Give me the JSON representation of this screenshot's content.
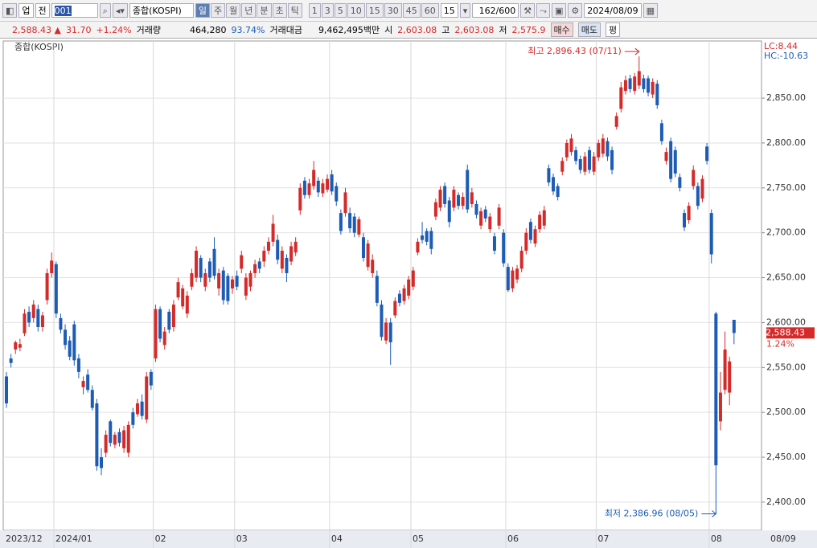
{
  "toolbar": {
    "market": "업",
    "scope": "전",
    "code": "001",
    "name": "종합(KOSPI)",
    "periods": [
      "일",
      "주",
      "월",
      "년",
      "분",
      "초",
      "틱"
    ],
    "intervals": [
      "1",
      "3",
      "5",
      "10",
      "15",
      "30",
      "45",
      "60"
    ],
    "unit": "15",
    "count": "162/600",
    "date": "2024/08/09"
  },
  "quote": {
    "price": "2,588.43",
    "change": "31.70",
    "change_pct": "+1.24%",
    "volume_label": "거래량",
    "volume": "464,280",
    "volume_ratio": "93.74%",
    "amount_label": "거래대금",
    "amount": "9,462,495백만",
    "open_label": "시",
    "open": "2,603.08",
    "high_label": "고",
    "high": "2,603.08",
    "low_label": "저",
    "low": "2,575.9",
    "buy": "매수",
    "sell": "매도",
    "avg": "평"
  },
  "chart_data": {
    "type": "candlestick",
    "title": "종합(KOSPI)",
    "categories": [
      "2023/12",
      null,
      null,
      null,
      null,
      null,
      null,
      null,
      null,
      null,
      null,
      "2024/01",
      null,
      null,
      null,
      null,
      null,
      null,
      null,
      null,
      null,
      null,
      null,
      null,
      null,
      null,
      null,
      null,
      null,
      null,
      null,
      null,
      null,
      "02",
      null,
      null,
      null,
      null,
      null,
      null,
      null,
      null,
      null,
      null,
      null,
      null,
      null,
      null,
      null,
      null,
      null,
      "03",
      null,
      null,
      null,
      null,
      null,
      null,
      null,
      null,
      null,
      null,
      null,
      null,
      null,
      null,
      null,
      null,
      null,
      null,
      null,
      null,
      "04",
      null,
      null,
      null,
      null,
      null,
      null,
      null,
      null,
      null,
      null,
      null,
      null,
      null,
      null,
      null,
      null,
      null,
      "05",
      null,
      null,
      null,
      null,
      null,
      null,
      null,
      null,
      null,
      null,
      null,
      null,
      null,
      null,
      null,
      null,
      null,
      null,
      null,
      null,
      "06",
      null,
      null,
      null,
      null,
      null,
      null,
      null,
      null,
      null,
      null,
      null,
      null,
      null,
      null,
      null,
      null,
      null,
      null,
      null,
      "07",
      null,
      null,
      null,
      null,
      null,
      null,
      null,
      null,
      null,
      null,
      null,
      null,
      null,
      null,
      null,
      null,
      null,
      null,
      null,
      null,
      null,
      null,
      null,
      null,
      "08",
      null,
      null,
      null,
      null,
      null
    ],
    "end_label": "08/09",
    "ohlc": [
      [
        2540,
        2545,
        2505,
        2510
      ],
      [
        2560,
        2565,
        2550,
        2555
      ],
      [
        2570,
        2580,
        2565,
        2578
      ],
      [
        2572,
        2582,
        2568,
        2576
      ],
      [
        2588,
        2615,
        2585,
        2610
      ],
      [
        2612,
        2618,
        2595,
        2600
      ],
      [
        2605,
        2625,
        2600,
        2620
      ],
      [
        2615,
        2620,
        2590,
        2595
      ],
      [
        2595,
        2612,
        2590,
        2608
      ],
      [
        2625,
        2660,
        2620,
        2655
      ],
      [
        2655,
        2678,
        2650,
        2669
      ],
      [
        2665,
        2668,
        2605,
        2610
      ],
      [
        2605,
        2610,
        2588,
        2592
      ],
      [
        2592,
        2598,
        2570,
        2575
      ],
      [
        2580,
        2585,
        2558,
        2562
      ],
      [
        2598,
        2602,
        2552,
        2558
      ],
      [
        2560,
        2565,
        2538,
        2545
      ],
      [
        2528,
        2540,
        2520,
        2535
      ],
      [
        2542,
        2548,
        2522,
        2525
      ],
      [
        2525,
        2530,
        2502,
        2505
      ],
      [
        2510,
        2515,
        2435,
        2440
      ],
      [
        2450,
        2460,
        2430,
        2438
      ],
      [
        2455,
        2480,
        2450,
        2475
      ],
      [
        2490,
        2492,
        2462,
        2466
      ],
      [
        2464,
        2478,
        2460,
        2475
      ],
      [
        2478,
        2482,
        2462,
        2466
      ],
      [
        2460,
        2485,
        2455,
        2480
      ],
      [
        2455,
        2490,
        2450,
        2486
      ],
      [
        2500,
        2505,
        2482,
        2486
      ],
      [
        2498,
        2515,
        2495,
        2510
      ],
      [
        2512,
        2520,
        2492,
        2496
      ],
      [
        2492,
        2545,
        2488,
        2540
      ],
      [
        2545,
        2548,
        2525,
        2530
      ],
      [
        2560,
        2620,
        2556,
        2615
      ],
      [
        2615,
        2618,
        2578,
        2582
      ],
      [
        2575,
        2595,
        2570,
        2590
      ],
      [
        2612,
        2615,
        2588,
        2592
      ],
      [
        2595,
        2625,
        2590,
        2620
      ],
      [
        2628,
        2650,
        2625,
        2645
      ],
      [
        2618,
        2642,
        2615,
        2638
      ],
      [
        2610,
        2635,
        2605,
        2630
      ],
      [
        2640,
        2660,
        2636,
        2655
      ],
      [
        2650,
        2685,
        2645,
        2680
      ],
      [
        2672,
        2675,
        2645,
        2650
      ],
      [
        2640,
        2660,
        2635,
        2655
      ],
      [
        2668,
        2672,
        2645,
        2650
      ],
      [
        2682,
        2695,
        2648,
        2652
      ],
      [
        2638,
        2660,
        2630,
        2655
      ],
      [
        2658,
        2662,
        2620,
        2625
      ],
      [
        2652,
        2655,
        2620,
        2624
      ],
      [
        2638,
        2652,
        2632,
        2648
      ],
      [
        2652,
        2658,
        2636,
        2640
      ],
      [
        2660,
        2680,
        2655,
        2675
      ],
      [
        2630,
        2655,
        2625,
        2650
      ],
      [
        2640,
        2658,
        2635,
        2655
      ],
      [
        2655,
        2670,
        2650,
        2665
      ],
      [
        2668,
        2672,
        2655,
        2660
      ],
      [
        2668,
        2685,
        2662,
        2680
      ],
      [
        2680,
        2695,
        2676,
        2690
      ],
      [
        2690,
        2720,
        2685,
        2710
      ],
      [
        2692,
        2698,
        2665,
        2670
      ],
      [
        2660,
        2685,
        2655,
        2680
      ],
      [
        2672,
        2676,
        2645,
        2655
      ],
      [
        2668,
        2690,
        2664,
        2685
      ],
      [
        2678,
        2695,
        2674,
        2690
      ],
      [
        2725,
        2755,
        2720,
        2750
      ],
      [
        2758,
        2762,
        2738,
        2742
      ],
      [
        2742,
        2760,
        2738,
        2755
      ],
      [
        2752,
        2780,
        2748,
        2770
      ],
      [
        2758,
        2762,
        2740,
        2745
      ],
      [
        2744,
        2760,
        2740,
        2755
      ],
      [
        2748,
        2765,
        2745,
        2760
      ],
      [
        2765,
        2770,
        2742,
        2746
      ],
      [
        2752,
        2756,
        2730,
        2735
      ],
      [
        2722,
        2726,
        2698,
        2702
      ],
      [
        2722,
        2750,
        2718,
        2745
      ],
      [
        2722,
        2728,
        2700,
        2705
      ],
      [
        2718,
        2722,
        2695,
        2700
      ],
      [
        2698,
        2718,
        2695,
        2715
      ],
      [
        2695,
        2700,
        2668,
        2672
      ],
      [
        2662,
        2692,
        2658,
        2688
      ],
      [
        2655,
        2676,
        2650,
        2670
      ],
      [
        2652,
        2658,
        2618,
        2622
      ],
      [
        2620,
        2625,
        2580,
        2584
      ],
      [
        2580,
        2605,
        2576,
        2600
      ],
      [
        2600,
        2605,
        2553,
        2578
      ],
      [
        2608,
        2628,
        2605,
        2624
      ],
      [
        2632,
        2636,
        2618,
        2622
      ],
      [
        2624,
        2642,
        2620,
        2638
      ],
      [
        2630,
        2652,
        2626,
        2648
      ],
      [
        2640,
        2662,
        2636,
        2658
      ],
      [
        2678,
        2694,
        2675,
        2690
      ],
      [
        2697,
        2712,
        2688,
        2692
      ],
      [
        2702,
        2705,
        2686,
        2690
      ],
      [
        2702,
        2706,
        2676,
        2682
      ],
      [
        2718,
        2738,
        2714,
        2734
      ],
      [
        2728,
        2752,
        2724,
        2748
      ],
      [
        2752,
        2756,
        2728,
        2732
      ],
      [
        2736,
        2740,
        2706,
        2712
      ],
      [
        2728,
        2752,
        2724,
        2748
      ],
      [
        2742,
        2745,
        2726,
        2730
      ],
      [
        2730,
        2745,
        2726,
        2740
      ],
      [
        2770,
        2776,
        2722,
        2726
      ],
      [
        2732,
        2750,
        2728,
        2745
      ],
      [
        2732,
        2736,
        2716,
        2720
      ],
      [
        2708,
        2728,
        2704,
        2724
      ],
      [
        2726,
        2730,
        2712,
        2716
      ],
      [
        2704,
        2722,
        2700,
        2718
      ],
      [
        2696,
        2700,
        2676,
        2680
      ],
      [
        2708,
        2732,
        2704,
        2728
      ],
      [
        2700,
        2704,
        2662,
        2666
      ],
      [
        2662,
        2666,
        2634,
        2636
      ],
      [
        2638,
        2662,
        2634,
        2658
      ],
      [
        2648,
        2664,
        2644,
        2660
      ],
      [
        2660,
        2685,
        2656,
        2680
      ],
      [
        2680,
        2705,
        2676,
        2700
      ],
      [
        2712,
        2716,
        2688,
        2692
      ],
      [
        2688,
        2708,
        2684,
        2704
      ],
      [
        2704,
        2724,
        2700,
        2720
      ],
      [
        2708,
        2730,
        2704,
        2725
      ],
      [
        2772,
        2776,
        2752,
        2756
      ],
      [
        2762,
        2766,
        2742,
        2746
      ],
      [
        2752,
        2755,
        2736,
        2740
      ],
      [
        2768,
        2784,
        2764,
        2780
      ],
      [
        2784,
        2804,
        2780,
        2800
      ],
      [
        2790,
        2810,
        2786,
        2805
      ],
      [
        2792,
        2796,
        2776,
        2780
      ],
      [
        2782,
        2786,
        2766,
        2770
      ],
      [
        2768,
        2790,
        2764,
        2785
      ],
      [
        2792,
        2796,
        2766,
        2770
      ],
      [
        2768,
        2790,
        2764,
        2785
      ],
      [
        2784,
        2804,
        2780,
        2800
      ],
      [
        2788,
        2810,
        2784,
        2805
      ],
      [
        2802,
        2806,
        2780,
        2785
      ],
      [
        2792,
        2796,
        2765,
        2770
      ],
      [
        2818,
        2834,
        2815,
        2830
      ],
      [
        2838,
        2868,
        2834,
        2862
      ],
      [
        2858,
        2875,
        2854,
        2870
      ],
      [
        2872,
        2876,
        2856,
        2860
      ],
      [
        2858,
        2878,
        2854,
        2874
      ],
      [
        2864,
        2896.43,
        2860,
        2880
      ],
      [
        2872,
        2876,
        2856,
        2860
      ],
      [
        2872,
        2875,
        2852,
        2856
      ],
      [
        2854,
        2872,
        2850,
        2868
      ],
      [
        2866,
        2870,
        2838,
        2842
      ],
      [
        2822,
        2826,
        2798,
        2802
      ],
      [
        2780,
        2795,
        2776,
        2790
      ],
      [
        2802,
        2806,
        2756,
        2760
      ],
      [
        2792,
        2796,
        2762,
        2766
      ],
      [
        2762,
        2766,
        2746,
        2750
      ],
      [
        2722,
        2726,
        2702,
        2706
      ],
      [
        2714,
        2734,
        2710,
        2730
      ],
      [
        2752,
        2775,
        2748,
        2770
      ],
      [
        2752,
        2756,
        2726,
        2730
      ],
      [
        2738,
        2764,
        2734,
        2760
      ],
      [
        2796,
        2800,
        2776,
        2780
      ],
      [
        2722,
        2726,
        2666,
        2676
      ],
      [
        2610,
        2612,
        2386.96,
        2441
      ],
      [
        2490,
        2545,
        2480,
        2522
      ],
      [
        2525,
        2590,
        2520,
        2570
      ],
      [
        2522,
        2562,
        2508,
        2556.73
      ],
      [
        2603.08,
        2603.08,
        2575.9,
        2588.43
      ]
    ],
    "up_color": "#d52a2a",
    "down_color": "#1c5cb5",
    "ylim": [
      2368.6,
      2913.6
    ],
    "yticks": [
      {
        "value": 2400,
        "label": "2,400.00"
      },
      {
        "value": 2450,
        "label": "2,450.00"
      },
      {
        "value": 2500,
        "label": "2,500.00"
      },
      {
        "value": 2550,
        "label": "2,550.00"
      },
      {
        "value": 2600,
        "label": "2,600.00"
      },
      {
        "value": 2650,
        "label": "2,650.00"
      },
      {
        "value": 2700,
        "label": "2,700.00"
      },
      {
        "value": 2750,
        "label": "2,750.00"
      },
      {
        "value": 2800,
        "label": "2,800.00"
      },
      {
        "value": 2850,
        "label": "2,850.00"
      }
    ],
    "grid": true,
    "max_label": "최고 2,896.43 (07/11)",
    "min_label": "최저 2,386.96 (08/05)",
    "last_label": "2,588.43",
    "last_value": 2588.43,
    "last_change": "1.24%",
    "lc": "LC:8.44",
    "hc": "HC:-10.63"
  }
}
